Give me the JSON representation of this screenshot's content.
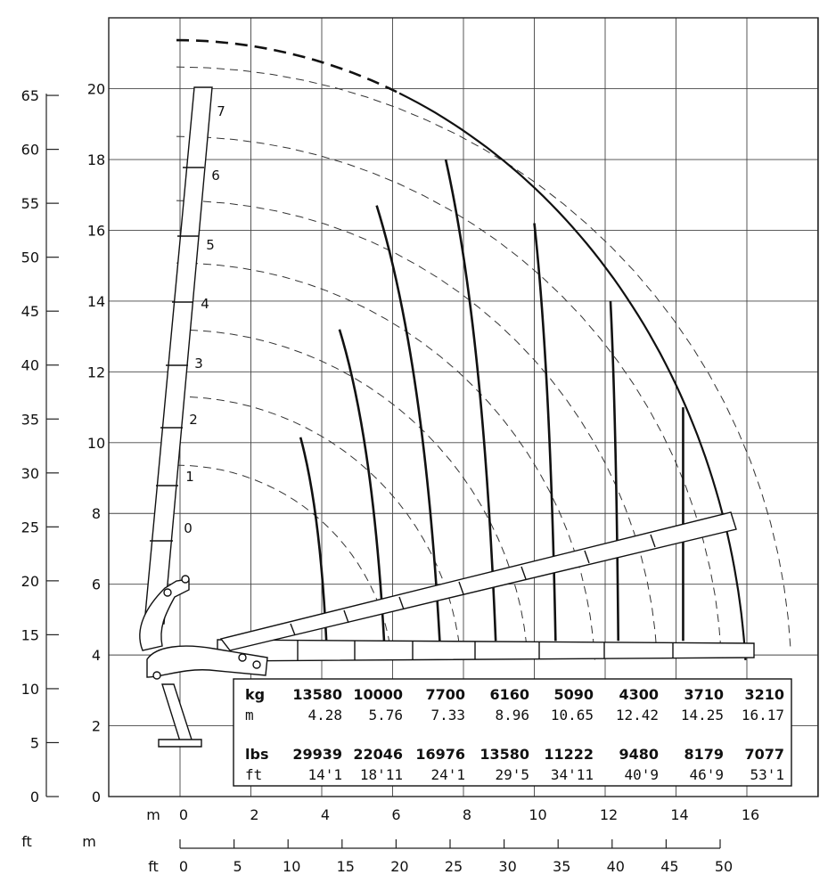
{
  "axes": {
    "ft_left_ticks": [
      "0",
      "5",
      "10",
      "15",
      "20",
      "25",
      "30",
      "35",
      "40",
      "45",
      "50",
      "55",
      "60",
      "65"
    ],
    "m_left_ticks": [
      "0",
      "2",
      "4",
      "6",
      "8",
      "10",
      "12",
      "14",
      "16",
      "18",
      "20"
    ],
    "m_bottom_ticks": [
      "0",
      "2",
      "4",
      "6",
      "8",
      "10",
      "12",
      "14",
      "16"
    ],
    "ft_bottom_ticks": [
      "0",
      "5",
      "10",
      "15",
      "20",
      "25",
      "30",
      "35",
      "40",
      "45",
      "50"
    ],
    "unit_m_bottom": "m",
    "unit_ft_bottom": "ft",
    "unit_ft_corner": "ft",
    "unit_m_corner": "m"
  },
  "boom_positions": [
    "0",
    "1",
    "2",
    "3",
    "4",
    "5",
    "6",
    "7"
  ],
  "load_table": {
    "kg_label": "kg",
    "m_label": "m",
    "lbs_label": "lbs",
    "ft_label": "ft",
    "kg": [
      "13580",
      "10000",
      "7700",
      "6160",
      "5090",
      "4300",
      "3710",
      "3210"
    ],
    "m": [
      "4.28",
      "5.76",
      "7.33",
      "8.96",
      "10.65",
      "12.42",
      "14.25",
      "16.17"
    ],
    "lbs": [
      "29939",
      "22046",
      "16976",
      "13580",
      "11222",
      "9480",
      "8179",
      "7077"
    ],
    "ft": [
      "14'1",
      "18'11",
      "24'1",
      "29'5",
      "34'11",
      "40'9",
      "46'9",
      "53'1"
    ]
  },
  "chart_data": {
    "type": "line",
    "x_unit": "m",
    "y_unit": "m",
    "xlim": [
      -2,
      18
    ],
    "ylim": [
      0,
      22
    ],
    "grid": true,
    "reach_m": [
      4.28,
      5.76,
      7.33,
      8.96,
      10.65,
      12.42,
      14.25,
      16.17
    ],
    "capacity_kg": [
      13580,
      10000,
      7700,
      6160,
      5090,
      4300,
      3710,
      3210
    ],
    "capacity_lbs": [
      29939,
      22046,
      16976,
      13580,
      11222,
      9480,
      8179,
      7077
    ],
    "reach_ft": [
      "14'1",
      "18'11",
      "24'1",
      "29'5",
      "34'11",
      "40'9",
      "46'9",
      "53'1"
    ],
    "boom_positions": [
      "0",
      "1",
      "2",
      "3",
      "4",
      "5",
      "6",
      "7"
    ]
  }
}
